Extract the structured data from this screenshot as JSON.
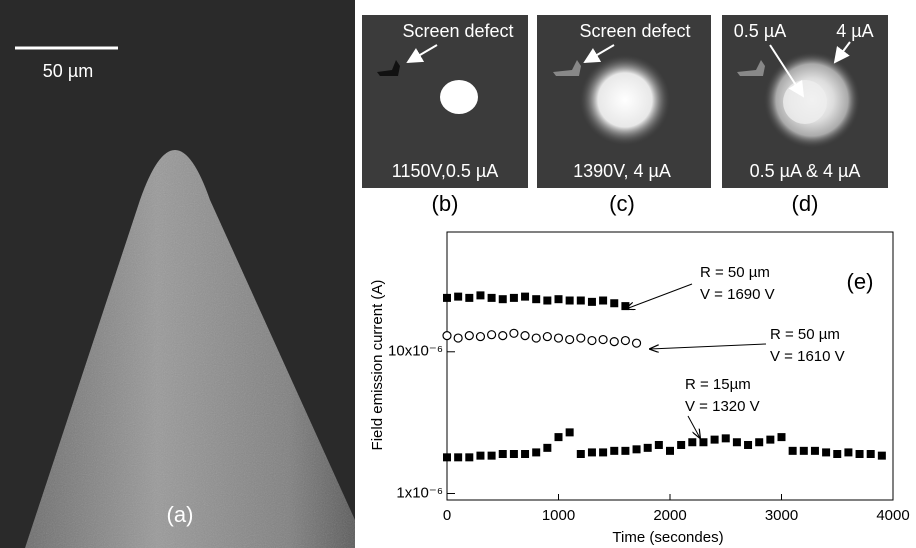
{
  "panels": [
    {
      "label": "(a)",
      "scale_bar": "50 µm"
    },
    {
      "label": "(b)",
      "annotations": [
        "Screen defect",
        "1150V,0.5 µA"
      ]
    },
    {
      "label": "(c)",
      "annotations": [
        "Screen defect",
        "1390V, 4 µA"
      ]
    },
    {
      "label": "(d)",
      "annotations": [
        "0.5 µA",
        "4 µA",
        "0.5 µA & 4 µA"
      ]
    }
  ],
  "chart_data": {
    "type": "scatter",
    "panel_label": "(e)",
    "x_label": "Time (secondes)",
    "y_label": "Field emission current (A)",
    "log_y": true,
    "xlim": [
      0,
      4000
    ],
    "xticks": [
      0,
      1000,
      2000,
      3000,
      4000
    ],
    "ylim": [
      9e-07,
      7e-05
    ],
    "yticks": [
      {
        "value": 1e-06,
        "label": "1x10⁻⁶"
      },
      {
        "value": 1e-05,
        "label": "10x10⁻⁶"
      }
    ],
    "annotations": [
      [
        "R = 50 µm",
        "V = 1690 V"
      ],
      [
        "R = 50 µm",
        "V = 1610 V"
      ],
      [
        "R = 15µm",
        "V = 1320 V"
      ]
    ],
    "series": [
      {
        "marker": "square",
        "color": "#000000",
        "x": [
          0,
          100,
          200,
          300,
          400,
          500,
          600,
          700,
          800,
          900,
          1000,
          1100,
          1200,
          1300,
          1400,
          1500,
          1600
        ],
        "values": [
          2.4e-05,
          2.45e-05,
          2.4e-05,
          2.5e-05,
          2.4e-05,
          2.35e-05,
          2.4e-05,
          2.45e-05,
          2.35e-05,
          2.3e-05,
          2.35e-05,
          2.3e-05,
          2.3e-05,
          2.25e-05,
          2.3e-05,
          2.2e-05,
          2.1e-05
        ]
      },
      {
        "marker": "circle",
        "color": "#000000",
        "x": [
          0,
          100,
          200,
          300,
          400,
          500,
          600,
          700,
          800,
          900,
          1000,
          1100,
          1200,
          1300,
          1400,
          1500,
          1600,
          1700
        ],
        "values": [
          1.3e-05,
          1.25e-05,
          1.3e-05,
          1.28e-05,
          1.32e-05,
          1.3e-05,
          1.35e-05,
          1.3e-05,
          1.25e-05,
          1.28e-05,
          1.25e-05,
          1.22e-05,
          1.25e-05,
          1.2e-05,
          1.22e-05,
          1.18e-05,
          1.2e-05,
          1.15e-05
        ]
      },
      {
        "marker": "square",
        "color": "#000000",
        "x": [
          0,
          100,
          200,
          300,
          400,
          500,
          600,
          700,
          800,
          900,
          1000,
          1100,
          1200,
          1300,
          1400,
          1500,
          1600,
          1700,
          1800,
          1900,
          2000,
          2100,
          2200,
          2300,
          2400,
          2500,
          2600,
          2700,
          2800,
          2900,
          3000,
          3100,
          3200,
          3300,
          3400,
          3500,
          3600,
          3700,
          3800,
          3900
        ],
        "values": [
          1.8e-06,
          1.8e-06,
          1.8e-06,
          1.85e-06,
          1.85e-06,
          1.9e-06,
          1.9e-06,
          1.9e-06,
          1.95e-06,
          2.1e-06,
          2.5e-06,
          2.7e-06,
          1.9e-06,
          1.95e-06,
          1.95e-06,
          2e-06,
          2e-06,
          2.05e-06,
          2.1e-06,
          2.2e-06,
          2e-06,
          2.2e-06,
          2.3e-06,
          2.3e-06,
          2.4e-06,
          2.45e-06,
          2.3e-06,
          2.2e-06,
          2.3e-06,
          2.4e-06,
          2.5e-06,
          2e-06,
          2e-06,
          2e-06,
          1.95e-06,
          1.9e-06,
          1.95e-06,
          1.9e-06,
          1.9e-06,
          1.85e-06
        ]
      }
    ]
  }
}
